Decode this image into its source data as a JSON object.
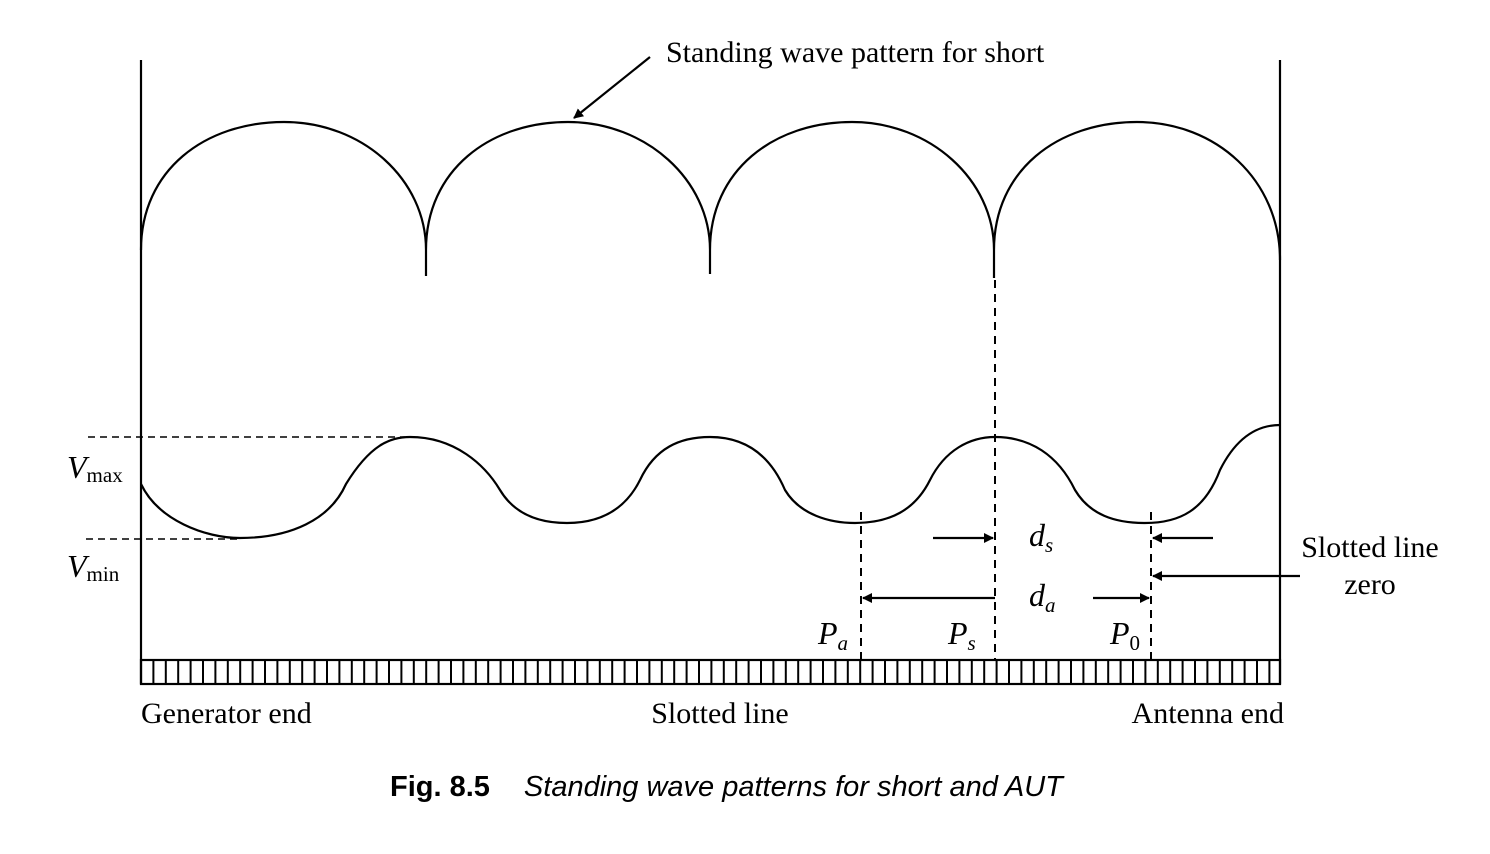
{
  "labels": {
    "short_pattern": "Standing wave pattern for short",
    "vmax_main": "V",
    "vmax_sub": "max",
    "vmin_main": "V",
    "vmin_sub": "min",
    "ds_main": "d",
    "ds_sub": "s",
    "da_main": "d",
    "da_sub": "a",
    "pa_main": "P",
    "pa_sub": "a",
    "ps_main": "P",
    "ps_sub": "s",
    "p0_main": "P",
    "p0_sub": "0",
    "slotted_line_zero_1": "Slotted line",
    "slotted_line_zero_2": "zero",
    "generator_end": "Generator end",
    "slotted_line": "Slotted line",
    "antenna_end": "Antenna end"
  },
  "caption": {
    "number": "Fig. 8.5",
    "text": "Standing wave patterns for short and AUT"
  }
}
